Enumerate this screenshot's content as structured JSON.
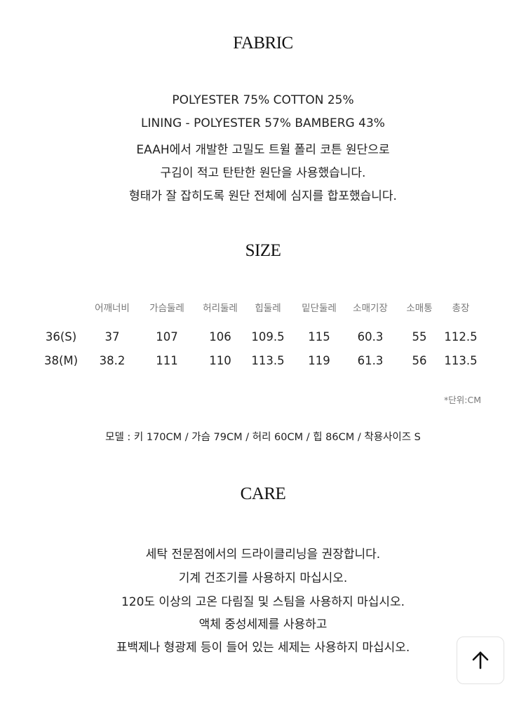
{
  "fabric": {
    "title": "FABRIC",
    "lines": [
      "POLYESTER 75% COTTON 25%",
      "LINING - POLYESTER 57% BAMBERG 43%",
      "EAAH에서 개발한 고밀도 트윌 폴리 코튼 원단으로",
      "구김이 적고 탄탄한 원단을 사용했습니다.",
      "형태가 잘 잡히도록 원단 전체에 심지를 합포했습니다."
    ]
  },
  "size": {
    "title": "SIZE",
    "columns": [
      "어깨너비",
      "가슴둘레",
      "허리둘레",
      "힙둘레",
      "밑단둘레",
      "소매기장",
      "소매통",
      "총장"
    ],
    "rows": [
      {
        "label": "36(S)",
        "values": [
          "37",
          "107",
          "106",
          "109.5",
          "115",
          "60.3",
          "55",
          "112.5"
        ]
      },
      {
        "label": "38(M)",
        "values": [
          "38.2",
          "111",
          "110",
          "113.5",
          "119",
          "61.3",
          "56",
          "113.5"
        ]
      }
    ],
    "unit": "*단위:CM",
    "model": "모델 : 키 170CM / 가슴 79CM / 허리 60CM / 힙 86CM / 착용사이즈 S"
  },
  "care": {
    "title": "CARE",
    "lines": [
      "세탁 전문점에서의 드라이클리닝을 권장합니다.",
      "기계 건조기를 사용하지 마십시오.",
      "120도 이상의 고온 다림질 및 스팀을 사용하지 마십시오.",
      "액체 중성세제를 사용하고",
      "표백제나 형광제 등이 들어 있는 세제는 사용하지 마십시오."
    ]
  },
  "scroll_top": {
    "icon": "arrow-up-icon"
  }
}
